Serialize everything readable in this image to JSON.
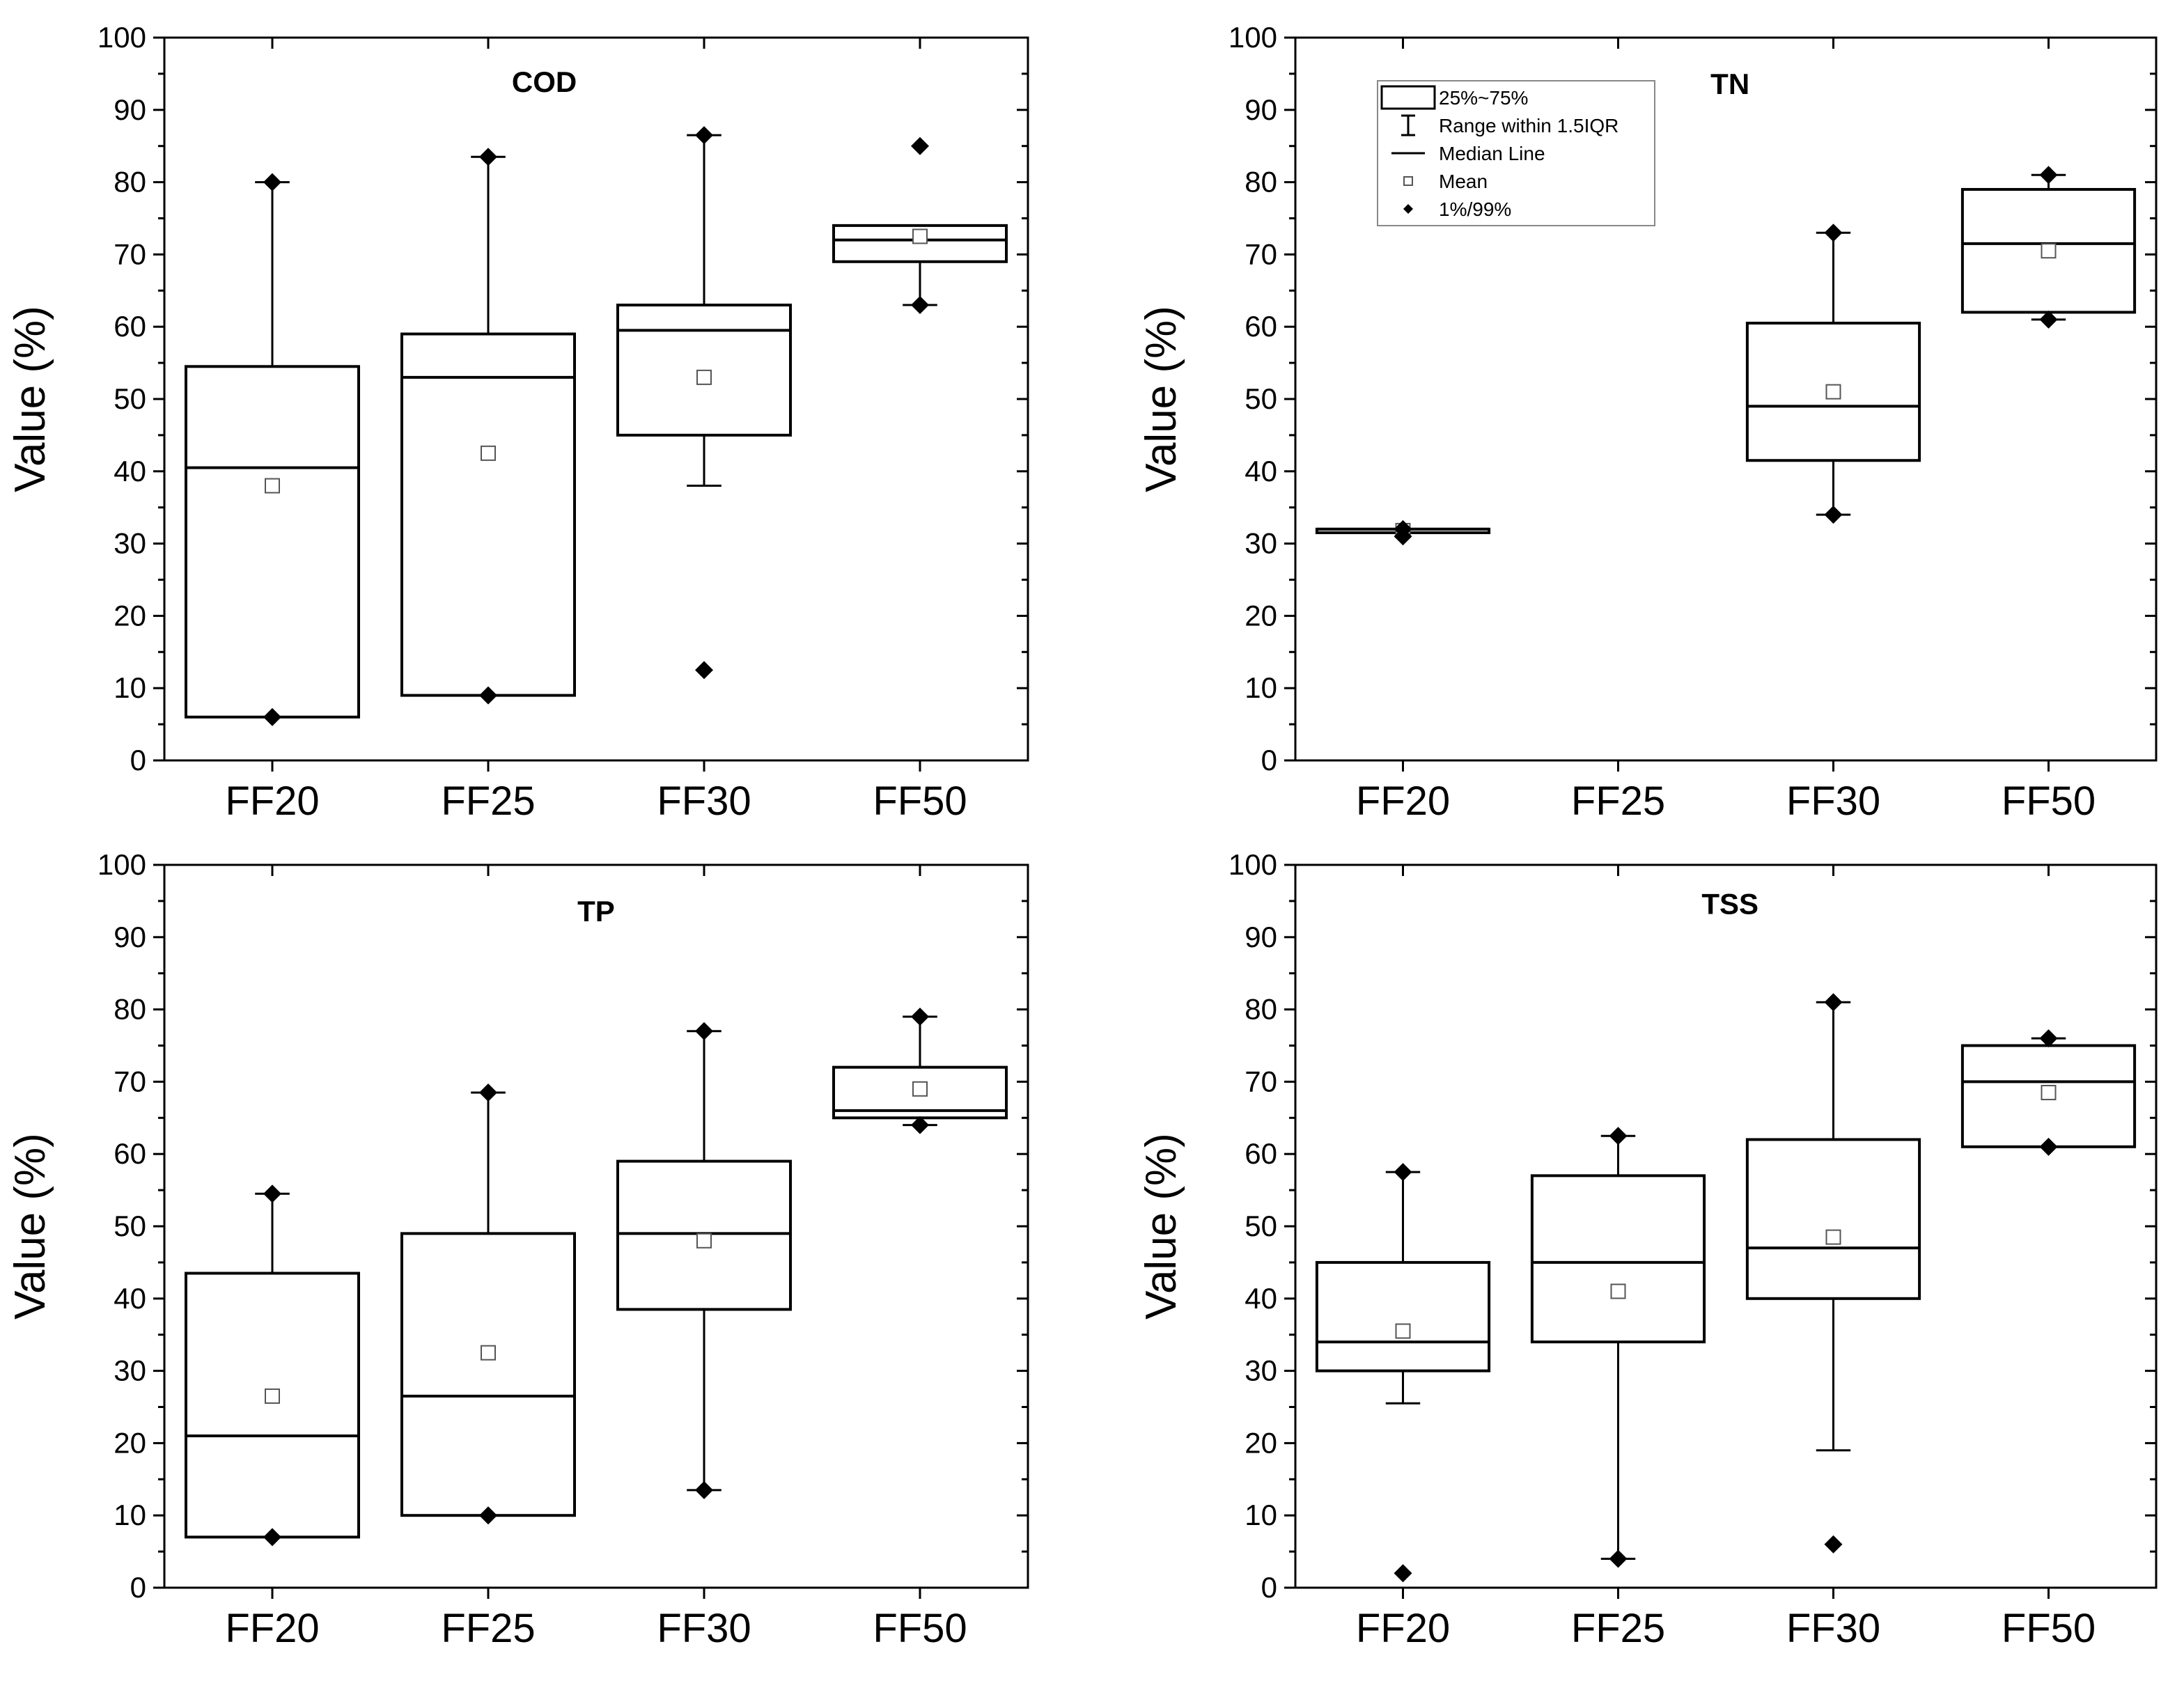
{
  "chart_data": [
    {
      "type": "box",
      "title": "COD",
      "ylabel": "Value (%)",
      "xlabel": "",
      "ylim": [
        0,
        100
      ],
      "yticks": [
        0,
        10,
        20,
        30,
        40,
        50,
        60,
        70,
        80,
        90,
        100
      ],
      "categories": [
        "FF20",
        "FF25",
        "FF30",
        "FF50"
      ],
      "boxes": [
        {
          "q1": 6,
          "median": 40.5,
          "q3": 54.5,
          "whisker_low": 6,
          "whisker_high": 80,
          "mean": 38,
          "p1": 6,
          "p99": 80
        },
        {
          "q1": 9,
          "median": 53,
          "q3": 59,
          "whisker_low": 9,
          "whisker_high": 83.5,
          "mean": 42.5,
          "p1": 9,
          "p99": 83.5
        },
        {
          "q1": 45,
          "median": 59.5,
          "q3": 63,
          "whisker_low": 38,
          "whisker_high": 86.5,
          "mean": 53,
          "p1": 12.5,
          "p99": 86.5
        },
        {
          "q1": 69,
          "median": 72,
          "q3": 74,
          "whisker_low": 63,
          "whisker_high": 74,
          "mean": 72.5,
          "p1": 63,
          "p99": 85
        }
      ]
    },
    {
      "type": "box",
      "title": "TN",
      "ylabel": "Value (%)",
      "xlabel": "",
      "ylim": [
        0,
        100
      ],
      "yticks": [
        0,
        10,
        20,
        30,
        40,
        50,
        60,
        70,
        80,
        90,
        100
      ],
      "categories": [
        "FF20",
        "FF25",
        "FF30",
        "FF50"
      ],
      "legend": {
        "items": [
          "25%~75%",
          "Range within 1.5IQR",
          "Median Line",
          "Mean",
          "1%/99%"
        ],
        "placement": "top-left"
      },
      "boxes": [
        {
          "q1": 31.5,
          "median": 32,
          "q3": 32,
          "whisker_low": 31.5,
          "whisker_high": 32,
          "mean": 31.8,
          "p1": 31,
          "p99": 32
        },
        null,
        {
          "q1": 41.5,
          "median": 49,
          "q3": 60.5,
          "whisker_low": 34,
          "whisker_high": 73,
          "mean": 51,
          "p1": 34,
          "p99": 73
        },
        {
          "q1": 62,
          "median": 71.5,
          "q3": 79,
          "whisker_low": 61,
          "whisker_high": 81,
          "mean": 70.5,
          "p1": 61,
          "p99": 81
        }
      ]
    },
    {
      "type": "box",
      "title": "TP",
      "ylabel": "Value (%)",
      "xlabel": "",
      "ylim": [
        0,
        100
      ],
      "yticks": [
        0,
        10,
        20,
        30,
        40,
        50,
        60,
        70,
        80,
        90,
        100
      ],
      "categories": [
        "FF20",
        "FF25",
        "FF30",
        "FF50"
      ],
      "boxes": [
        {
          "q1": 7,
          "median": 21,
          "q3": 43.5,
          "whisker_low": 7,
          "whisker_high": 54.5,
          "mean": 26.5,
          "p1": 7,
          "p99": 54.5
        },
        {
          "q1": 10,
          "median": 26.5,
          "q3": 49,
          "whisker_low": 10,
          "whisker_high": 68.5,
          "mean": 32.5,
          "p1": 10,
          "p99": 68.5
        },
        {
          "q1": 38.5,
          "median": 49,
          "q3": 59,
          "whisker_low": 13.5,
          "whisker_high": 77,
          "mean": 48,
          "p1": 13.5,
          "p99": 77
        },
        {
          "q1": 65,
          "median": 66,
          "q3": 72,
          "whisker_low": 64,
          "whisker_high": 79,
          "mean": 69,
          "p1": 64,
          "p99": 79
        }
      ]
    },
    {
      "type": "box",
      "title": "TSS",
      "ylabel": "Value (%)",
      "xlabel": "",
      "ylim": [
        0,
        100
      ],
      "yticks": [
        0,
        10,
        20,
        30,
        40,
        50,
        60,
        70,
        80,
        90,
        100
      ],
      "categories": [
        "FF20",
        "FF25",
        "FF30",
        "FF50"
      ],
      "boxes": [
        {
          "q1": 30,
          "median": 34,
          "q3": 45,
          "whisker_low": 25.5,
          "whisker_high": 57.5,
          "mean": 35.5,
          "p1": 2,
          "p99": 57.5
        },
        {
          "q1": 34,
          "median": 45,
          "q3": 57,
          "whisker_low": 4,
          "whisker_high": 62.5,
          "mean": 41,
          "p1": 4,
          "p99": 62.5
        },
        {
          "q1": 40,
          "median": 47,
          "q3": 62,
          "whisker_low": 19,
          "whisker_high": 81,
          "mean": 48.5,
          "p1": 6,
          "p99": 81
        },
        {
          "q1": 61,
          "median": 70,
          "q3": 75,
          "whisker_low": 61,
          "whisker_high": 76,
          "mean": 68.5,
          "p1": 61,
          "p99": 76
        }
      ]
    }
  ]
}
